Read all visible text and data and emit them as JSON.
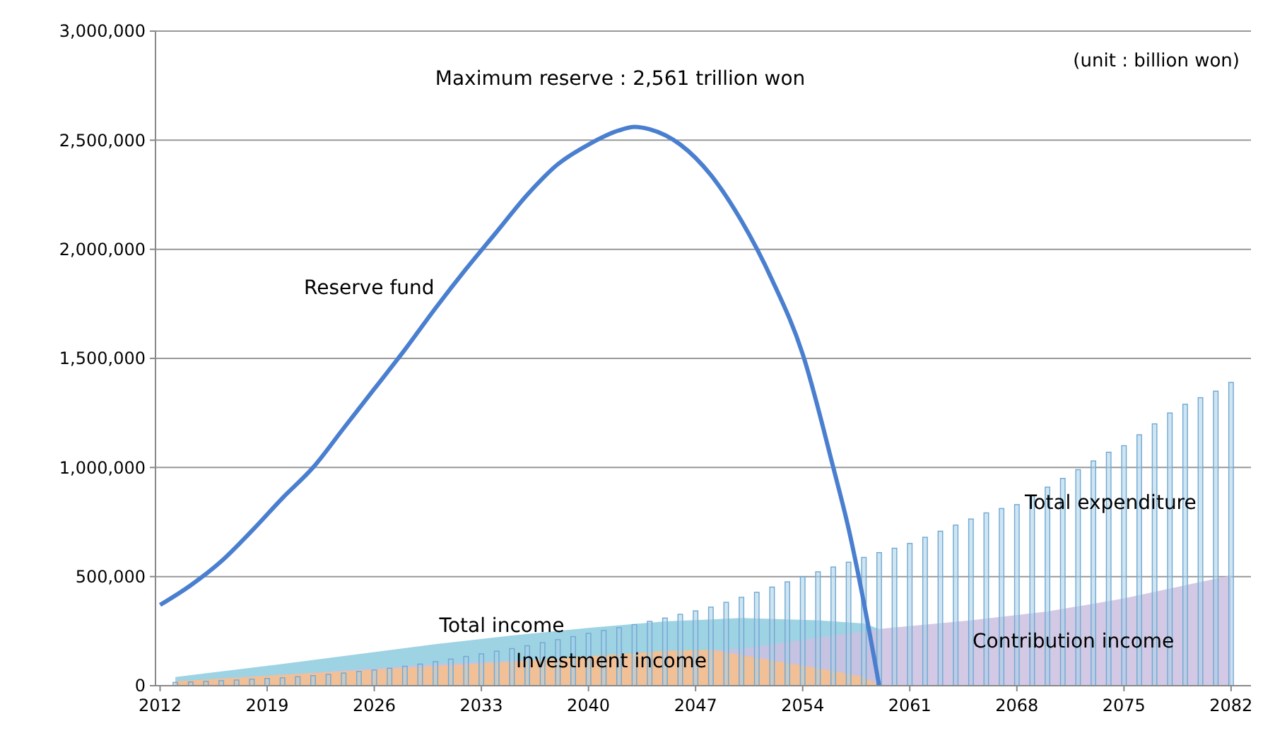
{
  "chart_data": {
    "type": "line",
    "xlim": [
      2011.7,
      2083.3
    ],
    "xticks": [
      2012,
      2019,
      2026,
      2033,
      2040,
      2047,
      2054,
      2061,
      2068,
      2075,
      2082
    ],
    "ylim": [
      0,
      3000000
    ],
    "yticks": [
      {
        "value": 0,
        "label": "0"
      },
      {
        "value": 500000,
        "label": "500,000"
      },
      {
        "value": 1000000,
        "label": "1,000,000"
      },
      {
        "value": 1500000,
        "label": "1,500,000"
      },
      {
        "value": 2000000,
        "label": "2,000,000"
      },
      {
        "value": 2500000,
        "label": "2,500,000"
      },
      {
        "value": 3000000,
        "label": "3,000,000"
      }
    ],
    "grid": "y",
    "legend": false,
    "annotations": [
      "(unit : billion won)",
      {
        "text": "Maximum reserve : 2,561 trillion won",
        "x": 2043,
        "y": 2561000
      }
    ],
    "series": [
      {
        "name": "Total expenditure",
        "type": "bar",
        "color": "#a9d0e8",
        "x": [
          2013,
          2014,
          2015,
          2016,
          2017,
          2018,
          2019,
          2020,
          2021,
          2022,
          2023,
          2024,
          2025,
          2026,
          2027,
          2028,
          2029,
          2030,
          2031,
          2032,
          2033,
          2034,
          2035,
          2036,
          2037,
          2038,
          2039,
          2040,
          2041,
          2042,
          2043,
          2044,
          2045,
          2046,
          2047,
          2048,
          2049,
          2050,
          2051,
          2052,
          2053,
          2054,
          2055,
          2056,
          2057,
          2058,
          2059,
          2060,
          2061,
          2062,
          2063,
          2064,
          2065,
          2066,
          2067,
          2068,
          2069,
          2070,
          2071,
          2072,
          2073,
          2074,
          2075,
          2076,
          2077,
          2078,
          2079,
          2080,
          2081,
          2082
        ],
        "values": [
          15000,
          17000,
          20000,
          23000,
          26000,
          30000,
          33000,
          36000,
          41000,
          46000,
          52000,
          58000,
          65000,
          72000,
          80000,
          89000,
          99000,
          110000,
          122000,
          134000,
          146000,
          158000,
          170000,
          183000,
          197000,
          211000,
          225000,
          240000,
          253000,
          266000,
          280000,
          295000,
          310000,
          327000,
          343000,
          360000,
          382000,
          405000,
          428000,
          452000,
          476000,
          500000,
          522000,
          544000,
          566000,
          588000,
          610000,
          630000,
          652000,
          680000,
          708000,
          736000,
          764000,
          792000,
          812000,
          830000,
          870000,
          910000,
          950000,
          990000,
          1030000,
          1070000,
          1100000,
          1150000,
          1200000,
          1250000,
          1290000,
          1320000,
          1350000,
          1390000
        ]
      },
      {
        "name": "Total income",
        "type": "area",
        "color": "#8ccbde",
        "x": [
          2013,
          2020,
          2025,
          2030,
          2035,
          2040,
          2045,
          2050,
          2055,
          2058,
          2059
        ],
        "values": [
          40000,
          100000,
          145000,
          190000,
          230000,
          265000,
          295000,
          310000,
          300000,
          285000,
          260000
        ]
      },
      {
        "name": "Contribution income",
        "type": "area",
        "color": "#cdbfe0",
        "x": [
          2013,
          2020,
          2030,
          2040,
          2050,
          2055,
          2059,
          2065,
          2070,
          2075,
          2082
        ],
        "values": [
          20000,
          50000,
          100000,
          130000,
          170000,
          220000,
          260000,
          300000,
          340000,
          400000,
          505000
        ]
      },
      {
        "name": "Investment income",
        "type": "area",
        "color": "#f9c08a",
        "x": [
          2013,
          2020,
          2025,
          2030,
          2035,
          2040,
          2045,
          2048,
          2050,
          2055,
          2058,
          2059
        ],
        "values": [
          20000,
          50000,
          70000,
          90000,
          110000,
          135000,
          160000,
          165000,
          140000,
          80000,
          40000,
          0
        ]
      },
      {
        "name": "Reserve fund",
        "color": "#4a7fd0",
        "x": [
          2012,
          2014,
          2016,
          2018,
          2020,
          2022,
          2024,
          2026,
          2028,
          2030,
          2032,
          2034,
          2036,
          2038,
          2040,
          2042,
          2043,
          2044,
          2046,
          2048,
          2050,
          2052,
          2054,
          2056,
          2057,
          2058,
          2059
        ],
        "values": [
          370000,
          460000,
          570000,
          710000,
          860000,
          1000000,
          1180000,
          1360000,
          1540000,
          1730000,
          1910000,
          2080000,
          2250000,
          2390000,
          2480000,
          2545000,
          2561000,
          2550000,
          2480000,
          2340000,
          2130000,
          1860000,
          1520000,
          1000000,
          720000,
          380000,
          0
        ]
      }
    ]
  }
}
